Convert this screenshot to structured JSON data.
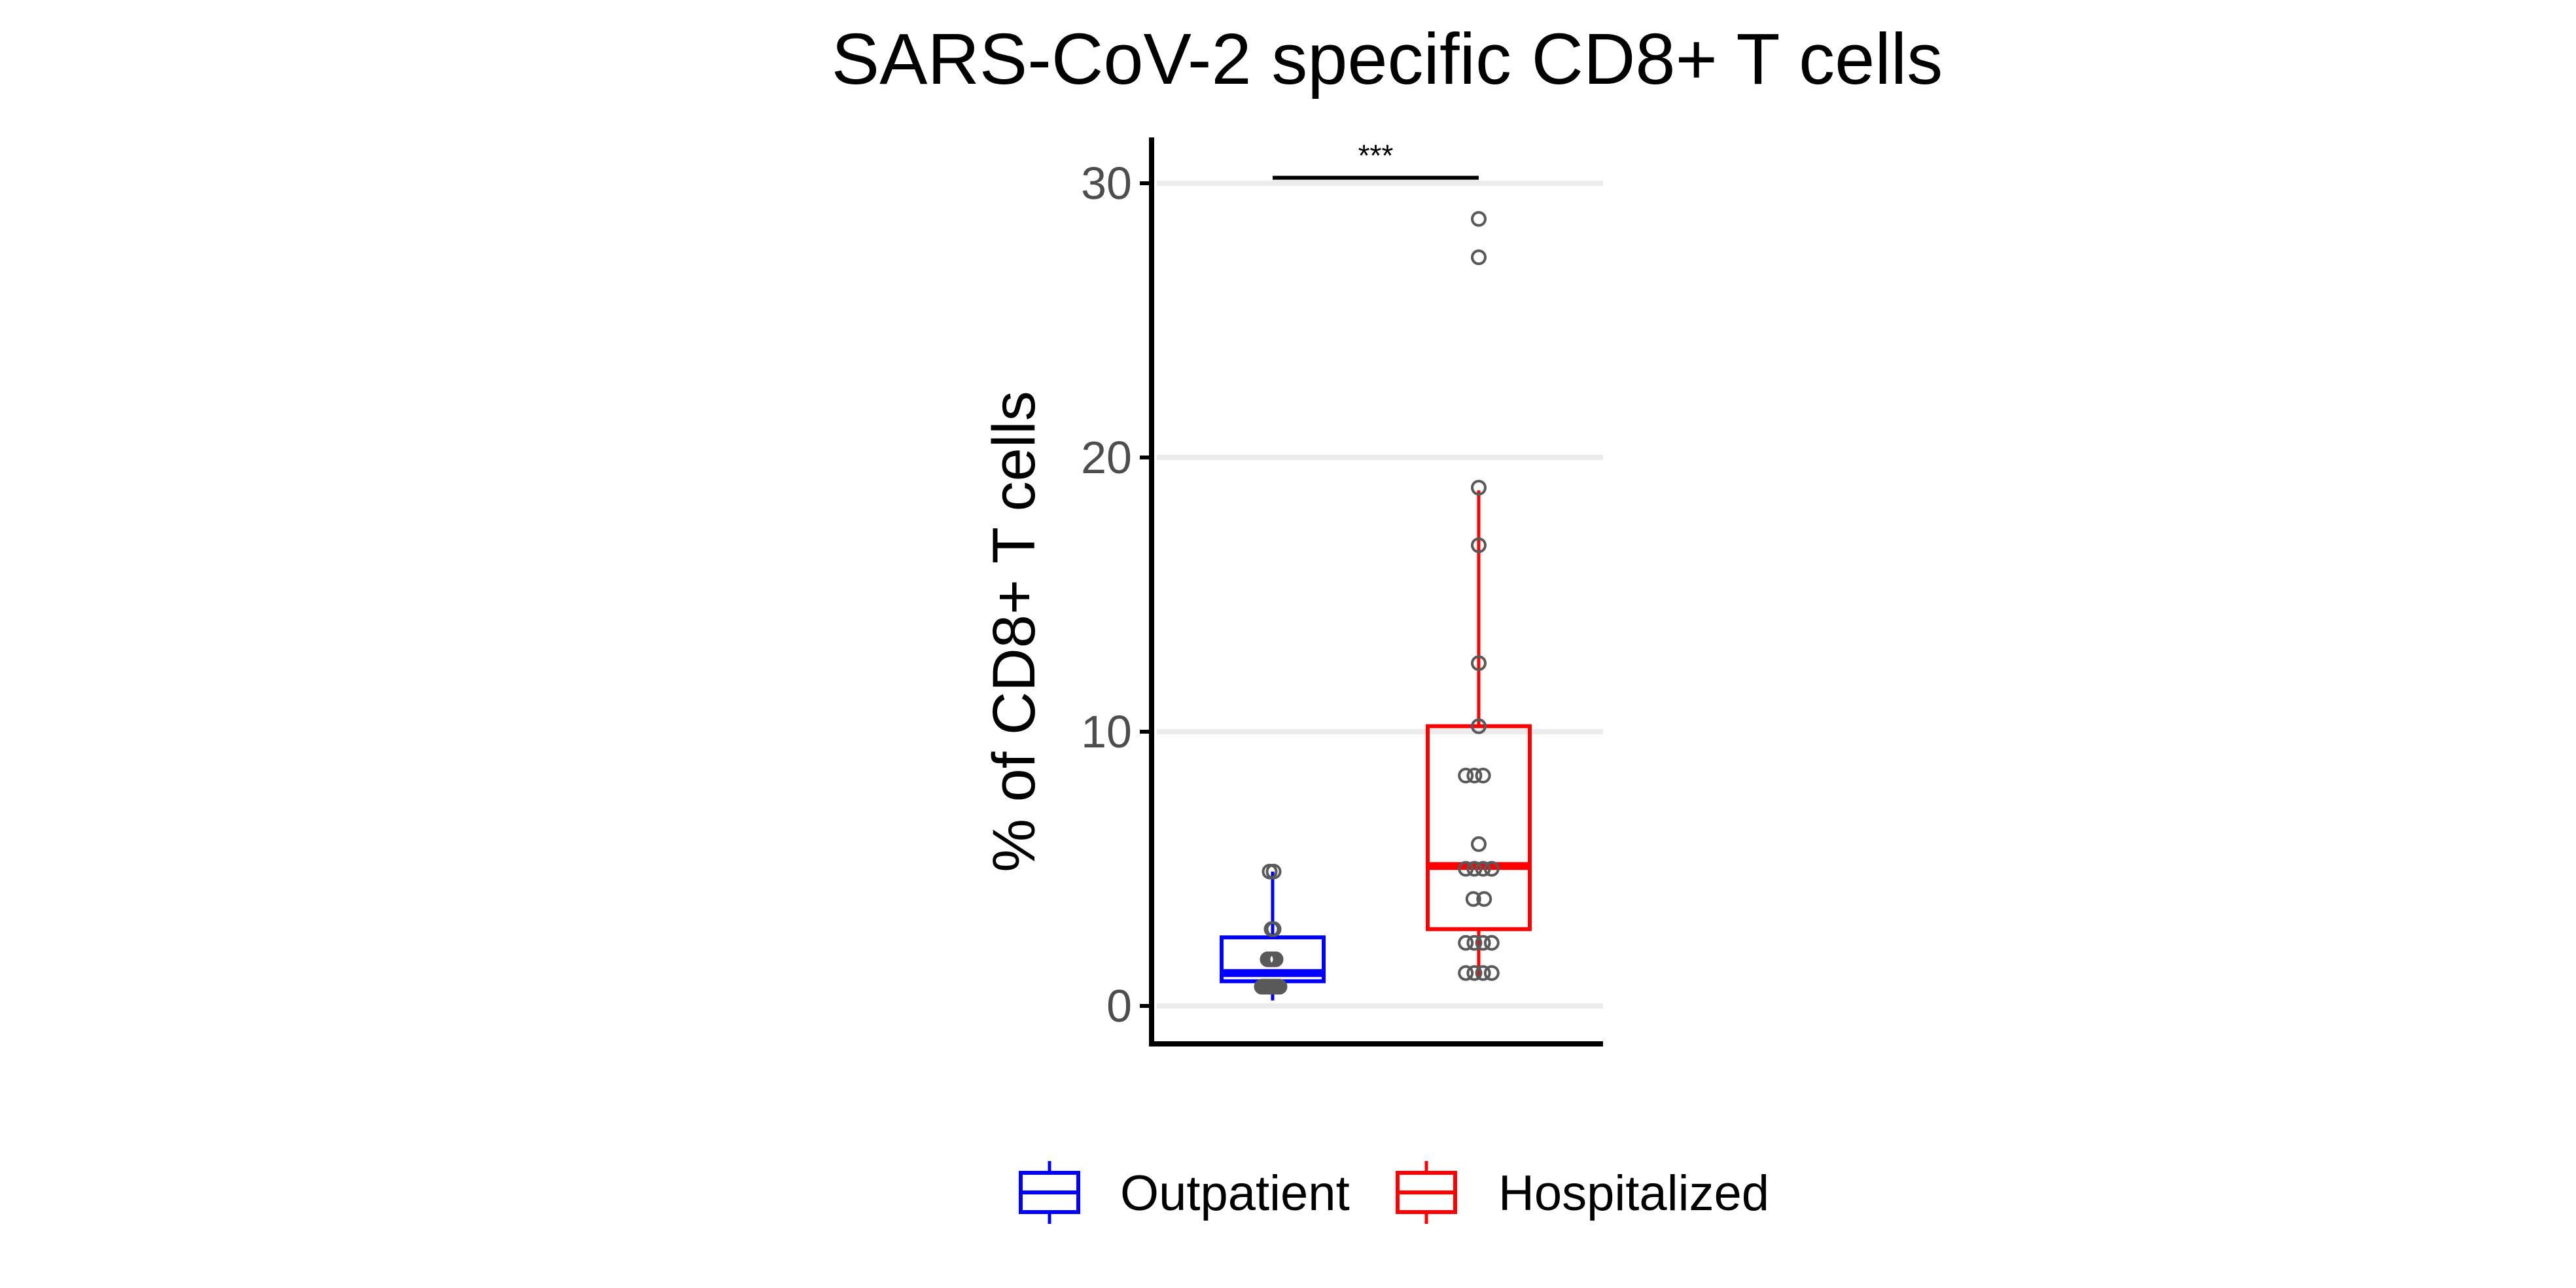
{
  "chart_data": {
    "type": "box",
    "title": "SARS-CoV-2 specific CD8+ T cells",
    "xlabel": "",
    "ylabel": "% of CD8+ T cells",
    "ylim": [
      -1.3,
      31.6
    ],
    "yticks": [
      0,
      10,
      20,
      30
    ],
    "grid": "horizontal major",
    "legend_position": "bottom",
    "categories": [
      "Outpatient",
      "Hospitalized"
    ],
    "series": [
      {
        "name": "Outpatient",
        "color": "#0000FF",
        "box": {
          "min": 0.2,
          "q1": 0.9,
          "median": 1.2,
          "q3": 2.5,
          "max": 4.9
        },
        "points": [
          {
            "y": 4.9,
            "dx": -0.15
          },
          {
            "y": 4.9,
            "dx": 0.05
          },
          {
            "y": 2.8,
            "dx": -0.05
          },
          {
            "y": 2.8,
            "dx": 0.05
          },
          {
            "y": 1.7,
            "dx": -0.25
          },
          {
            "y": 1.7,
            "dx": -0.15
          },
          {
            "y": 1.7,
            "dx": -0.05
          },
          {
            "y": 1.7,
            "dx": 0.05
          },
          {
            "y": 1.7,
            "dx": 0.15
          },
          {
            "y": 0.7,
            "dx": -0.55
          },
          {
            "y": 0.7,
            "dx": -0.45
          },
          {
            "y": 0.7,
            "dx": -0.35
          },
          {
            "y": 0.7,
            "dx": -0.25
          },
          {
            "y": 0.7,
            "dx": -0.15
          },
          {
            "y": 0.7,
            "dx": -0.05
          },
          {
            "y": 0.7,
            "dx": 0.05
          },
          {
            "y": 0.7,
            "dx": 0.15
          },
          {
            "y": 0.7,
            "dx": 0.25
          },
          {
            "y": 0.7,
            "dx": 0.35
          }
        ]
      },
      {
        "name": "Hospitalized",
        "color": "#FF0000",
        "box": {
          "min": 1.0,
          "q1": 2.8,
          "median": 5.1,
          "q3": 10.2,
          "max": 18.8
        },
        "points": [
          {
            "y": 28.7,
            "dx": 0.0
          },
          {
            "y": 27.3,
            "dx": 0.0
          },
          {
            "y": 18.9,
            "dx": 0.0
          },
          {
            "y": 16.8,
            "dx": 0.0
          },
          {
            "y": 12.5,
            "dx": 0.0
          },
          {
            "y": 10.2,
            "dx": 0.0
          },
          {
            "y": 8.4,
            "dx": -0.6
          },
          {
            "y": 8.4,
            "dx": -0.2
          },
          {
            "y": 8.4,
            "dx": 0.2
          },
          {
            "y": 5.9,
            "dx": 0.0
          },
          {
            "y": 5.0,
            "dx": -0.6
          },
          {
            "y": 5.0,
            "dx": -0.2
          },
          {
            "y": 5.0,
            "dx": 0.2
          },
          {
            "y": 5.0,
            "dx": 0.6
          },
          {
            "y": 3.9,
            "dx": -0.25
          },
          {
            "y": 3.9,
            "dx": 0.25
          },
          {
            "y": 2.3,
            "dx": -0.6
          },
          {
            "y": 2.3,
            "dx": -0.2
          },
          {
            "y": 2.3,
            "dx": 0.2
          },
          {
            "y": 2.3,
            "dx": 0.6
          },
          {
            "y": 1.2,
            "dx": -0.6
          },
          {
            "y": 1.2,
            "dx": -0.2
          },
          {
            "y": 1.2,
            "dx": 0.2
          },
          {
            "y": 1.2,
            "dx": 0.6
          }
        ]
      }
    ],
    "annotations": [
      {
        "text": "***",
        "y": 30.2,
        "from": "Outpatient",
        "to": "Hospitalized"
      }
    ],
    "colors": {
      "grid": "#EBEBEB",
      "axis": "#000000",
      "point_stroke": "#595959",
      "tick_label": "#4D4D4D"
    }
  }
}
